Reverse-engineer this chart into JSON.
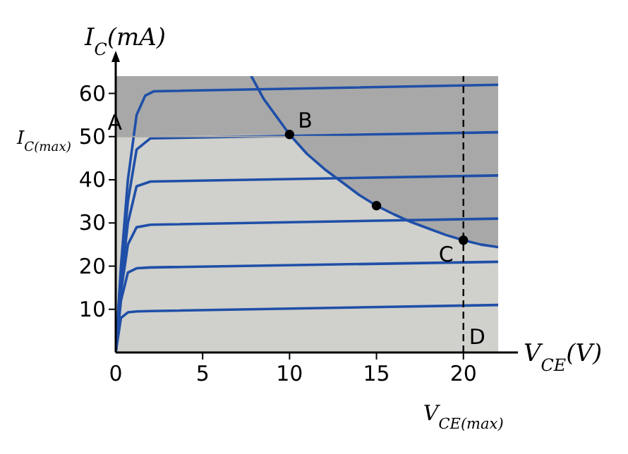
{
  "chart_data": {
    "type": "line",
    "xlabel": "V$_{CE}$(V)",
    "ylabel": "I$_{C}$(mA)",
    "xlim": [
      0,
      22
    ],
    "ylim": [
      0,
      64
    ],
    "xticks": [
      0,
      5,
      10,
      15,
      20
    ],
    "yticks": [
      10,
      20,
      30,
      40,
      50,
      60
    ],
    "grid": false,
    "marker": "none",
    "line_style": "solid",
    "ref_lines": [
      {
        "axis": "y",
        "value": 50,
        "label": "I$_{C(max)}$",
        "color": "#a8a8a8"
      },
      {
        "axis": "x",
        "value": 20,
        "label": "V$_{CE(max)}$",
        "color": "#000000",
        "line_style": "dashed"
      }
    ],
    "series": [
      {
        "type": "area",
        "color": "#d0d0cc",
        "x": [
          0,
          10,
          11,
          12,
          13,
          14,
          15,
          16,
          17,
          18,
          19,
          20,
          21,
          22
        ],
        "values": [
          50,
          50.5,
          46,
          42.5,
          39.5,
          36.5,
          34,
          32,
          30.2,
          28.7,
          27.2,
          26,
          25,
          24.4
        ]
      },
      {
        "color": "#1f4fa8",
        "x": [
          0,
          0.3,
          0.7,
          1.2,
          2,
          22
        ],
        "values": [
          0,
          8,
          9.3,
          9.5,
          9.6,
          11
        ]
      },
      {
        "color": "#1f4fa8",
        "x": [
          0,
          0.3,
          0.7,
          1.2,
          2,
          22
        ],
        "values": [
          0,
          12,
          18.5,
          19.5,
          19.7,
          21
        ]
      },
      {
        "color": "#1f4fa8",
        "x": [
          0,
          0.3,
          0.7,
          1.2,
          2,
          22
        ],
        "values": [
          0,
          14,
          25,
          29,
          29.6,
          31
        ]
      },
      {
        "color": "#1f4fa8",
        "x": [
          0,
          0.3,
          0.7,
          1.2,
          2,
          22
        ],
        "values": [
          0,
          16,
          30,
          38.5,
          39.6,
          41
        ]
      },
      {
        "color": "#1f4fa8",
        "x": [
          0,
          0.3,
          0.7,
          1.2,
          2,
          22
        ],
        "values": [
          0,
          18,
          35,
          47,
          49.6,
          51
        ]
      },
      {
        "color": "#1f4fa8",
        "x": [
          0,
          0.3,
          0.7,
          1.2,
          1.7,
          2.2,
          22
        ],
        "values": [
          0,
          20,
          40,
          55,
          59.5,
          60.5,
          62
        ]
      },
      {
        "color": "#1f4fa8",
        "x": [
          7.8,
          8.5,
          10,
          11,
          12,
          13,
          14,
          15,
          16,
          17,
          18,
          19,
          20,
          21,
          22
        ],
        "values": [
          64,
          58.8,
          50.5,
          46,
          42.5,
          39.5,
          36.5,
          34,
          32,
          30.2,
          28.7,
          27.2,
          26,
          25,
          24.4
        ]
      },
      {
        "type": "scatter",
        "color": "#000000",
        "marker": "circle",
        "x": [
          10,
          15,
          20
        ],
        "values": [
          50.5,
          34,
          26
        ]
      }
    ],
    "annotations": [
      {
        "text": "A",
        "x": 0.85,
        "y": 50
      },
      {
        "text": "B",
        "x": 10,
        "y": 50.5
      },
      {
        "text": "C",
        "x": 20,
        "y": 26
      },
      {
        "text": "D",
        "x": 20,
        "y": 0
      }
    ]
  }
}
